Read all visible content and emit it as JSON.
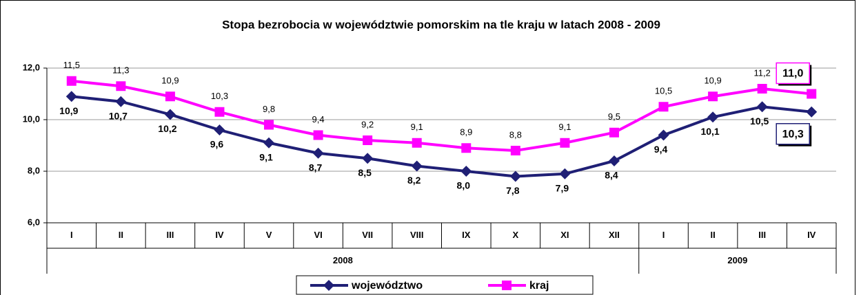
{
  "chart_data": {
    "type": "line",
    "title": "Stopa bezrobocia w województwie pomorskim na tle kraju w latach 2008 - 2009",
    "groups": [
      {
        "name": "2008",
        "categories": [
          "I",
          "II",
          "III",
          "IV",
          "V",
          "VI",
          "VII",
          "VIII",
          "IX",
          "X",
          "XI",
          "XII"
        ]
      },
      {
        "name": "2009",
        "categories": [
          "I",
          "II",
          "III",
          "IV"
        ]
      }
    ],
    "series": [
      {
        "name": "województwo",
        "color": "#1f1f75",
        "marker": "diamond",
        "values": [
          10.9,
          10.7,
          10.2,
          9.6,
          9.1,
          8.7,
          8.5,
          8.2,
          8.0,
          7.8,
          7.9,
          8.4,
          9.4,
          10.1,
          10.5,
          10.3
        ],
        "value_labels": [
          "10,9",
          "10,7",
          "10,2",
          "9,6",
          "9,1",
          "8,7",
          "8,5",
          "8,2",
          "8,0",
          "7,8",
          "7,9",
          "8,4",
          "9,4",
          "10,1",
          "10,5",
          "10,3"
        ]
      },
      {
        "name": "kraj",
        "color": "#ff00ff",
        "marker": "square",
        "values": [
          11.5,
          11.3,
          10.9,
          10.3,
          9.8,
          9.4,
          9.2,
          9.1,
          8.9,
          8.8,
          9.1,
          9.5,
          10.5,
          10.9,
          11.2,
          11.0
        ],
        "value_labels": [
          "11,5",
          "11,3",
          "10,9",
          "10,3",
          "9,8",
          "9,4",
          "9,2",
          "9,1",
          "8,9",
          "8,8",
          "9,1",
          "9,5",
          "10,5",
          "10,9",
          "11,2",
          "11,0"
        ]
      }
    ],
    "ylim": [
      6,
      12
    ],
    "yticks": [
      {
        "value": 6,
        "label": "6,0"
      },
      {
        "value": 8,
        "label": "8,0"
      },
      {
        "value": 10,
        "label": "10,0"
      },
      {
        "value": 12,
        "label": "12,0"
      }
    ],
    "grid": true,
    "legend": "bottom"
  }
}
